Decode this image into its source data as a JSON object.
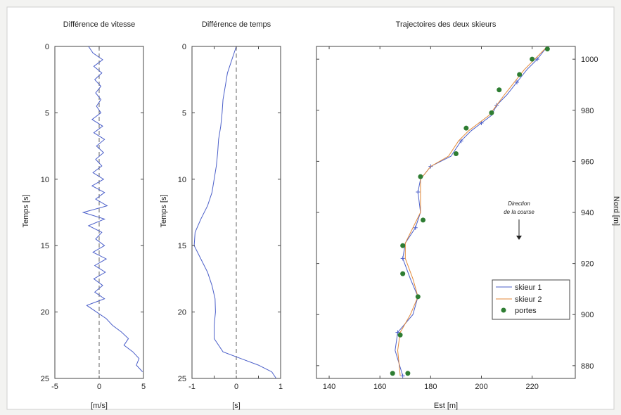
{
  "chart_data": [
    {
      "type": "line",
      "title": "Différence de vitesse",
      "xlabel": "[m/s]",
      "ylabel": "Temps [s]",
      "xlim": [
        -5,
        5
      ],
      "ylim": [
        0,
        25
      ],
      "y_inverted": true,
      "xticks": [
        -5,
        0,
        5
      ],
      "yticks": [
        0,
        5,
        10,
        15,
        20,
        25
      ],
      "reference_line": {
        "x": 0,
        "style": "dashed"
      },
      "series": [
        {
          "color": "#4b5fc9",
          "x": [
            -1.2,
            -0.7,
            0.4,
            -0.6,
            0.3,
            -0.5,
            0.2,
            -0.4,
            0.2,
            -0.3,
            0.2,
            -0.8,
            0.4,
            -0.6,
            0.6,
            -0.3,
            0.5,
            -0.4,
            0.3,
            -0.7,
            0.5,
            -0.8,
            0.6,
            -0.4,
            0.9,
            -1.8,
            0.6,
            -1.2,
            0.3,
            -0.4,
            0.6,
            -0.7,
            0.8,
            -0.5,
            0.7,
            -0.6,
            0.4,
            -0.5,
            0.6,
            -1.4,
            -0.3,
            0.8,
            1.5,
            2.5,
            3.3,
            2.8,
            3.8,
            4.5,
            4.2,
            4.9
          ],
          "y": [
            0,
            0.5,
            1.0,
            1.5,
            2.0,
            2.5,
            3.0,
            3.5,
            4.0,
            4.5,
            5.0,
            5.5,
            6.0,
            6.5,
            7.0,
            7.5,
            8.0,
            8.5,
            9.0,
            9.5,
            10.0,
            10.5,
            11.0,
            11.5,
            12.0,
            12.5,
            13.0,
            13.5,
            14.0,
            14.5,
            15.0,
            15.5,
            16.0,
            16.5,
            17.0,
            17.5,
            18.0,
            18.5,
            19.0,
            19.5,
            20.0,
            20.5,
            21.0,
            21.5,
            22.0,
            22.5,
            23.0,
            23.5,
            24.0,
            24.5
          ]
        }
      ]
    },
    {
      "type": "line",
      "title": "Différence de temps",
      "xlabel": "[s]",
      "ylabel": "Temps [s]",
      "xlim": [
        -1,
        1
      ],
      "ylim": [
        0,
        25
      ],
      "y_inverted": true,
      "xticks": [
        -1,
        -0.5,
        0,
        0.5,
        1
      ],
      "xtick_labels": [
        "-1",
        "",
        "0",
        "",
        "1"
      ],
      "yticks": [
        0,
        5,
        10,
        15,
        20,
        25
      ],
      "reference_line": {
        "x": 0,
        "style": "dashed"
      },
      "series": [
        {
          "color": "#4b5fc9",
          "x": [
            0,
            -0.1,
            -0.2,
            -0.25,
            -0.3,
            -0.32,
            -0.35,
            -0.4,
            -0.42,
            -0.45,
            -0.5,
            -0.55,
            -0.65,
            -0.8,
            -0.93,
            -0.95,
            -0.8,
            -0.65,
            -0.55,
            -0.48,
            -0.47,
            -0.5,
            -0.5,
            -0.3,
            0.1,
            0.5,
            0.8,
            0.9
          ],
          "y": [
            0,
            1,
            2,
            3,
            4,
            5,
            6,
            7,
            8,
            9,
            10,
            11,
            12,
            13,
            14,
            15,
            16,
            17,
            18,
            19,
            20,
            21,
            22,
            23,
            23.5,
            24,
            24.5,
            25
          ]
        }
      ]
    },
    {
      "type": "line",
      "title": "Trajectoires des deux skieurs",
      "xlabel": "Est [m]",
      "ylabel": "Nord [m]",
      "xlim": [
        135,
        237
      ],
      "ylim": [
        875,
        1005
      ],
      "xticks": [
        140,
        160,
        180,
        200,
        220
      ],
      "yticks": [
        880,
        900,
        920,
        940,
        960,
        980,
        1000
      ],
      "legend_position": "bottom-right",
      "annotation": {
        "text": [
          "Direction",
          "de la course"
        ],
        "arrow": "down"
      },
      "series": [
        {
          "name": "skieur 1",
          "color": "#4b5fc9",
          "x": [
            226,
            222,
            218,
            214,
            210,
            206,
            204,
            200,
            196,
            192,
            188,
            180,
            176,
            175,
            176,
            174,
            170,
            169,
            172,
            175,
            173,
            167,
            166,
            169
          ],
          "y": [
            1005,
            1000,
            996,
            991,
            986,
            982,
            978,
            975,
            972,
            968,
            962,
            958,
            953,
            948,
            940,
            934,
            928,
            922,
            914,
            907,
            900,
            893,
            886,
            876
          ]
        },
        {
          "name": "skieur 2",
          "color": "#e38a3a",
          "x": [
            226,
            221,
            217,
            213,
            209,
            206,
            203,
            199,
            195,
            191,
            187,
            180,
            176,
            176,
            176,
            173,
            170,
            170,
            173,
            175,
            172,
            168,
            167,
            168
          ],
          "y": [
            1005,
            1000,
            996,
            991,
            986,
            982,
            978,
            975,
            972,
            968,
            962,
            958,
            953,
            948,
            940,
            934,
            928,
            922,
            914,
            907,
            900,
            893,
            886,
            876
          ]
        },
        {
          "name": "portes",
          "type": "scatter",
          "color": "#2e7d32",
          "x": [
            226,
            220,
            215,
            207,
            204,
            194,
            190,
            176,
            177,
            169,
            169,
            175,
            168,
            165,
            171
          ],
          "y": [
            1004,
            1000,
            994,
            988,
            979,
            973,
            963,
            954,
            937,
            927,
            916,
            907,
            892,
            877,
            877
          ]
        }
      ]
    }
  ]
}
